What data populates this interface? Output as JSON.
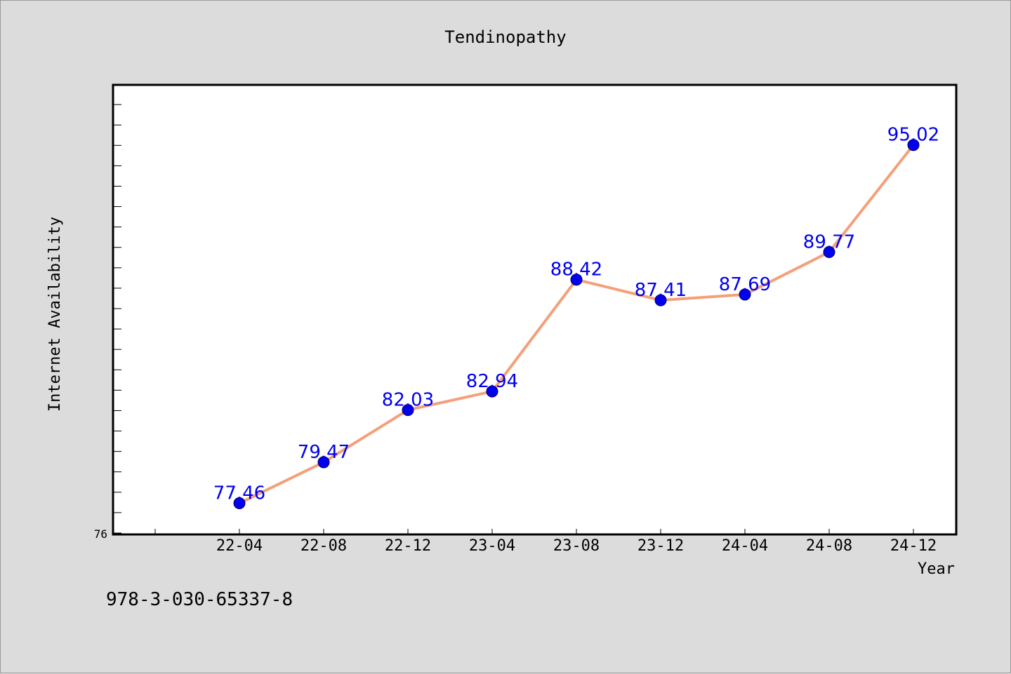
{
  "chart_data": {
    "type": "line",
    "title": "Tendinopathy",
    "xlabel": "Year",
    "ylabel": "Internet Availability",
    "categories": [
      "22-04",
      "22-08",
      "22-12",
      "23-04",
      "23-08",
      "23-12",
      "24-04",
      "24-08",
      "24-12"
    ],
    "values": [
      77.46,
      79.47,
      82.03,
      82.94,
      88.42,
      87.41,
      87.69,
      89.77,
      95.02
    ],
    "data_labels": [
      "77.46",
      "79.47",
      "82.03",
      "82.94",
      "88.42",
      "87.41",
      "87.69",
      "89.77",
      "95.02"
    ],
    "y_tick_labels": [
      "76"
    ],
    "ylim": [
      76,
      98
    ],
    "grid": false,
    "line_color": "#f4a07a",
    "marker_color": "#0000ee",
    "label_color": "#0000ee"
  },
  "footer": {
    "isbn": "978-3-030-65337-8"
  }
}
